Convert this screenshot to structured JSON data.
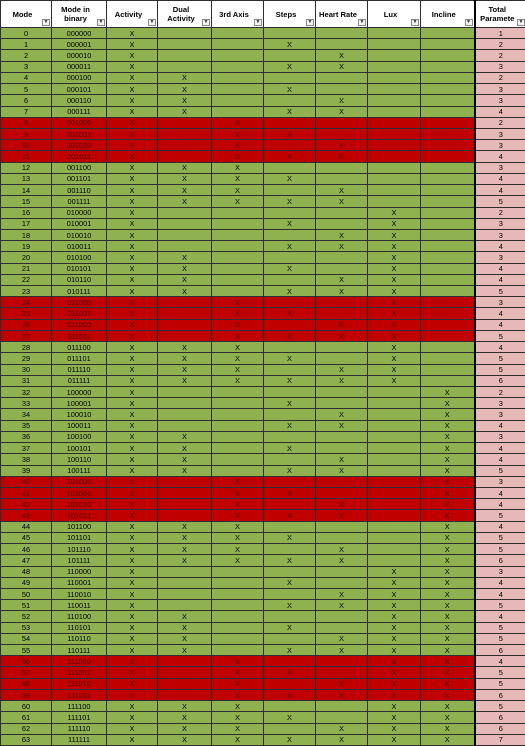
{
  "headers": [
    {
      "label": "Mode",
      "name": "mode"
    },
    {
      "label": "Mode in binary",
      "name": "mode-in-binary"
    },
    {
      "label": "Activity",
      "name": "activity"
    },
    {
      "label": "Dual Activity",
      "name": "dual-activity"
    },
    {
      "label": "3rd Axis",
      "name": "3rd-axis"
    },
    {
      "label": "Steps",
      "name": "steps"
    },
    {
      "label": "Heart Rate",
      "name": "heart-rate"
    },
    {
      "label": "Lux",
      "name": "lux"
    },
    {
      "label": "Incline",
      "name": "incline"
    },
    {
      "label": "Total Paramete",
      "name": "total-parameters"
    }
  ],
  "dropdown_icon": "filter-dropdown-icon",
  "mark": "X",
  "colors": {
    "enabled_row": "#8fb150",
    "disabled_row": "#c00000",
    "total_cell": "#e6b8b8",
    "header": "#ffffff"
  },
  "disabled_modes": [
    8,
    9,
    10,
    11,
    24,
    25,
    26,
    27,
    40,
    41,
    42,
    43,
    56,
    57,
    58,
    59
  ],
  "rows": [
    {
      "mode": "0",
      "binary": "000000",
      "total": "1"
    },
    {
      "mode": "1",
      "binary": "000001",
      "total": "2"
    },
    {
      "mode": "2",
      "binary": "000010",
      "total": "2"
    },
    {
      "mode": "3",
      "binary": "000011",
      "total": "3"
    },
    {
      "mode": "4",
      "binary": "000100",
      "total": "2"
    },
    {
      "mode": "5",
      "binary": "000101",
      "total": "3"
    },
    {
      "mode": "6",
      "binary": "000110",
      "total": "3"
    },
    {
      "mode": "7",
      "binary": "000111",
      "total": "4"
    },
    {
      "mode": "8",
      "binary": "001000",
      "total": "2"
    },
    {
      "mode": "9",
      "binary": "001001",
      "total": "3"
    },
    {
      "mode": "10",
      "binary": "001010",
      "total": "3"
    },
    {
      "mode": "11",
      "binary": "001011",
      "total": "4"
    },
    {
      "mode": "12",
      "binary": "001100",
      "total": "3"
    },
    {
      "mode": "13",
      "binary": "001101",
      "total": "4"
    },
    {
      "mode": "14",
      "binary": "001110",
      "total": "4"
    },
    {
      "mode": "15",
      "binary": "001111",
      "total": "5"
    },
    {
      "mode": "16",
      "binary": "010000",
      "total": "2"
    },
    {
      "mode": "17",
      "binary": "010001",
      "total": "3"
    },
    {
      "mode": "18",
      "binary": "010010",
      "total": "3"
    },
    {
      "mode": "19",
      "binary": "010011",
      "total": "4"
    },
    {
      "mode": "20",
      "binary": "010100",
      "total": "3"
    },
    {
      "mode": "21",
      "binary": "010101",
      "total": "4"
    },
    {
      "mode": "22",
      "binary": "010110",
      "total": "4"
    },
    {
      "mode": "23",
      "binary": "010111",
      "total": "5"
    },
    {
      "mode": "24",
      "binary": "011000",
      "total": "3"
    },
    {
      "mode": "25",
      "binary": "011001",
      "total": "4"
    },
    {
      "mode": "26",
      "binary": "011010",
      "total": "4"
    },
    {
      "mode": "27",
      "binary": "011011",
      "total": "5"
    },
    {
      "mode": "28",
      "binary": "011100",
      "total": "4"
    },
    {
      "mode": "29",
      "binary": "011101",
      "total": "5"
    },
    {
      "mode": "30",
      "binary": "011110",
      "total": "5"
    },
    {
      "mode": "31",
      "binary": "011111",
      "total": "6"
    },
    {
      "mode": "32",
      "binary": "100000",
      "total": "2"
    },
    {
      "mode": "33",
      "binary": "100001",
      "total": "3"
    },
    {
      "mode": "34",
      "binary": "100010",
      "total": "3"
    },
    {
      "mode": "35",
      "binary": "100011",
      "total": "4"
    },
    {
      "mode": "36",
      "binary": "100100",
      "total": "3"
    },
    {
      "mode": "37",
      "binary": "100101",
      "total": "4"
    },
    {
      "mode": "38",
      "binary": "100110",
      "total": "4"
    },
    {
      "mode": "39",
      "binary": "100111",
      "total": "5"
    },
    {
      "mode": "40",
      "binary": "101000",
      "total": "3"
    },
    {
      "mode": "41",
      "binary": "101001",
      "total": "4"
    },
    {
      "mode": "42",
      "binary": "101010",
      "total": "4"
    },
    {
      "mode": "43",
      "binary": "101011",
      "total": "5"
    },
    {
      "mode": "44",
      "binary": "101100",
      "total": "4"
    },
    {
      "mode": "45",
      "binary": "101101",
      "total": "5"
    },
    {
      "mode": "46",
      "binary": "101110",
      "total": "5"
    },
    {
      "mode": "47",
      "binary": "101111",
      "total": "6"
    },
    {
      "mode": "48",
      "binary": "110000",
      "total": "3"
    },
    {
      "mode": "49",
      "binary": "110001",
      "total": "4"
    },
    {
      "mode": "50",
      "binary": "110010",
      "total": "4"
    },
    {
      "mode": "51",
      "binary": "110011",
      "total": "5"
    },
    {
      "mode": "52",
      "binary": "110100",
      "total": "4"
    },
    {
      "mode": "53",
      "binary": "110101",
      "total": "5"
    },
    {
      "mode": "54",
      "binary": "110110",
      "total": "5"
    },
    {
      "mode": "55",
      "binary": "110111",
      "total": "6"
    },
    {
      "mode": "56",
      "binary": "111000",
      "total": "4"
    },
    {
      "mode": "57",
      "binary": "111001",
      "total": "5"
    },
    {
      "mode": "58",
      "binary": "111010",
      "total": "5"
    },
    {
      "mode": "59",
      "binary": "111011",
      "total": "6"
    },
    {
      "mode": "60",
      "binary": "111100",
      "total": "5"
    },
    {
      "mode": "61",
      "binary": "111101",
      "total": "6"
    },
    {
      "mode": "62",
      "binary": "111110",
      "total": "6"
    },
    {
      "mode": "63",
      "binary": "111111",
      "total": "7"
    }
  ]
}
